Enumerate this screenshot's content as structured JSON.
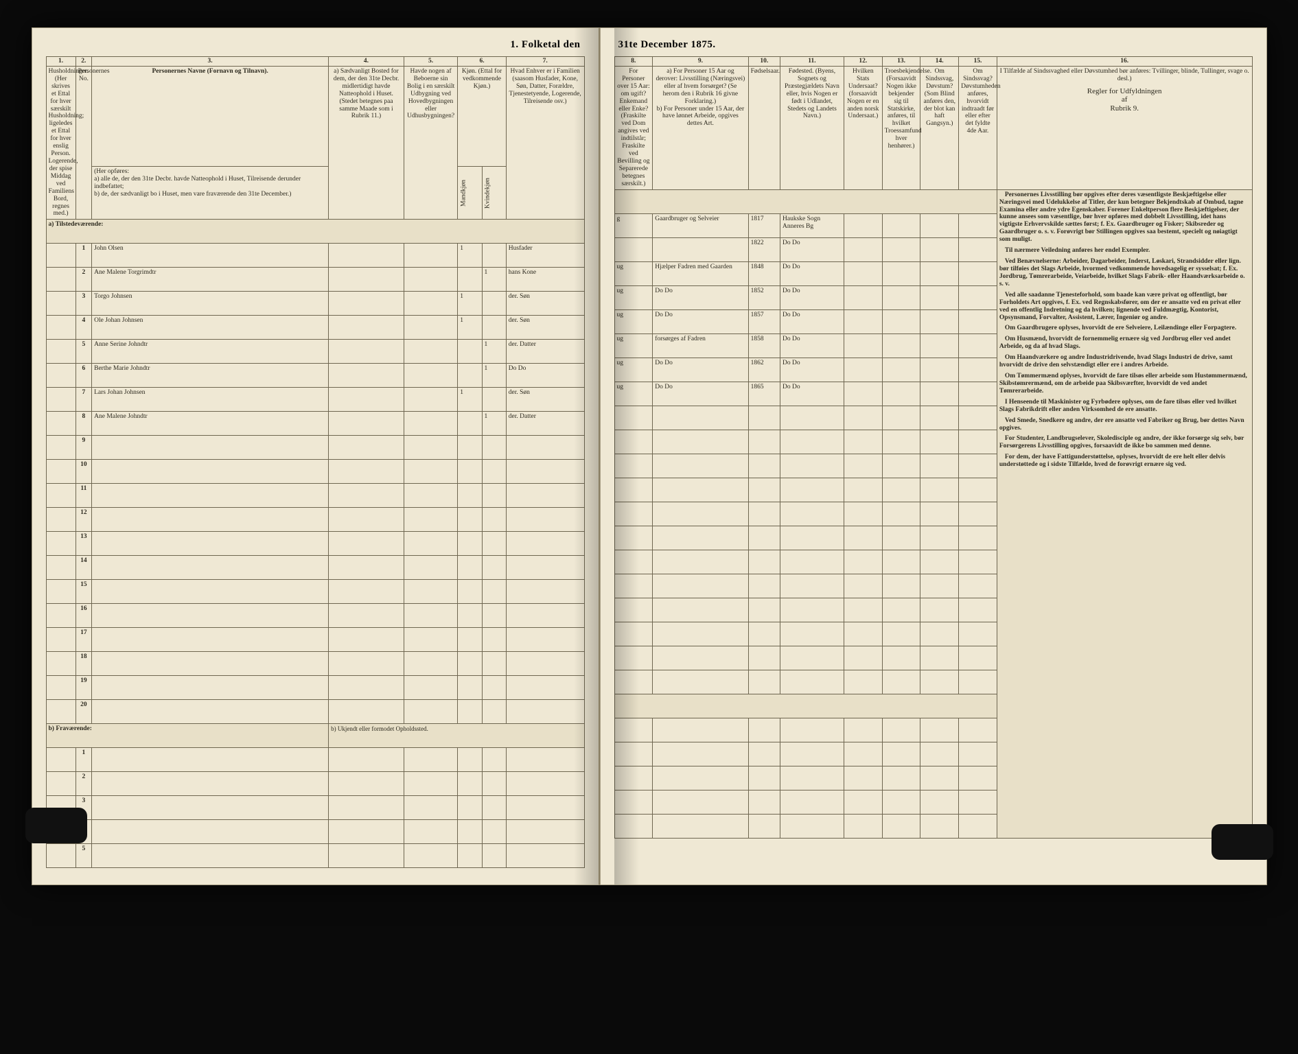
{
  "title_left": "1. Folketal den",
  "title_right": "31te December 1875.",
  "col_numbers_left": [
    "1.",
    "2.",
    "3.",
    "4.",
    "5.",
    "6.",
    "7."
  ],
  "col_numbers_right": [
    "8.",
    "9.",
    "10.",
    "11.",
    "12.",
    "13.",
    "14.",
    "15.",
    "16."
  ],
  "headers_left": {
    "c1": "Husholdninger. (Her skrives et Ettal for hver særskilt Husholdning; ligeledes et Ettal for hver enslig Person. Logerende, der spise Middag ved Familiens Bord, regnes med.)",
    "c2": "Personernes No.",
    "c3_top": "Personernes Navne (Fornavn og Tilnavn).",
    "c3_sub": "(Her opføres:\na) alle de, der den 31te Decbr. havde Natteophold i Huset, Tilreisende derunder indbefattet;\nb) de, der sædvanligt bo i Huset, men vare fraværende den 31te December.)",
    "c4": "a) Sædvanligt Bosted for dem, der den 31te Decbr. midlertidigt havde Natteophold i Huset. (Stedet betegnes paa samme Maade som i Rubrik 11.)",
    "c5": "Havde nogen af Beboerne sin Bolig i en særskilt Udbygning ved Hovedbygningen eller Udhusbygningen?",
    "c6_top": "Kjøn. (Ettal for vedkommende Kjøn.)",
    "c6_m": "Mandkjøn",
    "c6_k": "Kvindekjøn",
    "c7": "Hvad Enhver er i Familien (saasom Husfader, Kone, Søn, Datter, Forældre, Tjenestetyende, Logerende, Tilreisende osv.)"
  },
  "headers_right": {
    "c8": "For Personer over 15 Aar: om ugift? Enkemand eller Enke? (Fraskilte ved Dom angives ved indtilstår; Fraskilte ved Bevilling og Separerede betegnes særskilt.)",
    "c9": "a) For Personer 15 Aar og derover: Livsstilling (Næringsvei) eller af hvem forsørget? (Se herom den i Rubrik 16 givne Forklaring.)\nb) For Personer under 15 Aar, der have lønnet Arbeide, opgives dettes Art.",
    "c10": "Fødselsaar.",
    "c11": "Fødested. (Byens, Sognets og Præstegjældets Navn eller, hvis Nogen er født i Udlandet, Stedets og Landets Navn.)",
    "c12": "Hvilken Stats Undersaat? (forsaavidt Nogen er en anden norsk Undersaat.)",
    "c13": "Troesbekjendelse. (Forsaavidt Nogen ikke bekjender sig til Statskirke, anføres, til hvilket Troessamfund hver henhører.)",
    "c14": "Om Sindssvag, Døvstum? (Som Blind anføres den, der blot kan haft Gangsyn.)",
    "c15": "Om Sindssvag? Døvstumheden anføres, hvorvidt indtraadt før eller efter det fyldte 4de Aar.",
    "c16_head": "I Tilfælde af Sindssvaghed eller Døvstumhed bør anføres: Tvillinger, blinde, Tullinger, svage o. desl.)"
  },
  "rules_block_title": "Regler for Udfyldningen\naf\nRubrik 9.",
  "rules_paragraphs": [
    "Personernes Livsstilling bør opgives efter deres væsentligste Beskjæftigelse eller Næringsvei med Udelukkelse af Titler, der kun betegner Bekjendtskab af Ombud, tagne Examina eller andre ydre Egenskaber. Forener Enkeltperson flere Beskjæftigelser, der kunne ansees som væsentlige, bør hver opføres med dobbelt Livsstilling, idet hans vigtigste Erhvervskilde sættes først; f. Ex. Gaardbruger og Fisker; Skibsreder og Gaardbruger o. s. v. Forøvrigt bør Stillingen opgives saa bestemt, specielt og nøiagtigt som muligt.",
    "Til nærmere Veiledning anføres her endel Exempler.",
    "Ved Benævnelserne: Arbeider, Dagarbeider, Inderst, Løskari, Strandsidder eller lign. bør tilføies det Slags Arbeide, hvormed vedkommende hovedsagelig er sysselsat; f. Ex. Jordbrug, Tømrerarbeide, Veiarbeide, hvilket Slags Fabrik- eller Haandværksarbeide o. s. v.",
    "Ved alle saadanne Tjenesteforhold, som baade kan være privat og offentligt, bør Forholdets Art opgives, f. Ex. ved Regnskabsfører, om der er ansatte ved en privat eller ved en offentlig Indretning og da hvilken; lignende ved Fuldmægtig, Kontorist, Opsynsmand, Forvalter, Assistent, Lærer, Ingeniør og andre.",
    "Om Gaardbrugere oplyses, hvorvidt de ere Selveiere, Leilændinge eller Forpagtere.",
    "Om Husmænd, hvorvidt de fornemmelig ernære sig ved Jordbrug eller ved andet Arbeide, og da af hvad Slags.",
    "Om Haandværkere og andre Industridrivende, hvad Slags Industri de drive, samt hvorvidt de drive den selvstændigt eller ere i andres Arbeide.",
    "Om Tømmermænd oplyses, hvorvidt de fare tilsøs eller arbeide som Hustømmermænd, Skibstømrermænd, om de arbeide paa Skibsværfter, hvorvidt de ved andet Tømrerarbeide.",
    "I Henseende til Maskinister og Fyrbødere oplyses, om de fare tilsøs eller ved hvilket Slags Fabrikdrift eller anden Virksomhed de ere ansatte.",
    "Ved Smede, Snedkere og andre, der ere ansatte ved Fabriker og Brug, bør dettes Navn opgives.",
    "For Studenter, Landbrugselever, Skoledisciple og andre, der ikke forsørge sig selv, bør Forsørgerens Livsstilling opgives, forsaavidt de ikke bo sammen med denne.",
    "For dem, der have Fattigunderstøttelse, oplyses, hvorvidt de ere helt eller delvis understøttede og i sidste Tilfælde, hved de forøvrigt ernære sig ved."
  ],
  "section_a": "a)  Tilstedeværende:",
  "section_b": "b)  Fraværende:",
  "section_b_note": "b) Ukjendt eller formodet Opholdssted.",
  "rows_a": [
    {
      "n": "1",
      "name": "John Olsen",
      "c4": "",
      "c5": "",
      "m": "1",
      "k": "",
      "rel": "Husfader",
      "c8": "g",
      "occ": "Gaardbruger og Selveier",
      "yr": "1817",
      "born": "Haukske Sogn Anneres Bg",
      "s12": "",
      "s13": "",
      "s14": "",
      "s15": ""
    },
    {
      "n": "2",
      "name": "Ane Malene Torgrimdtr",
      "c4": "",
      "c5": "",
      "m": "",
      "k": "1",
      "rel": "hans Kone",
      "c8": "",
      "occ": "",
      "yr": "1822",
      "born": "Do   Do",
      "s12": "",
      "s13": "",
      "s14": "",
      "s15": ""
    },
    {
      "n": "3",
      "name": "Torgo Johnsen",
      "c4": "",
      "c5": "",
      "m": "1",
      "k": "",
      "rel": "der. Søn",
      "c8": "ug",
      "occ": "Hjælper Fadren med Gaarden",
      "yr": "1848",
      "born": "Do   Do",
      "s12": "",
      "s13": "",
      "s14": "",
      "s15": ""
    },
    {
      "n": "4",
      "name": "Ole Johan Johnsen",
      "c4": "",
      "c5": "",
      "m": "1",
      "k": "",
      "rel": "der. Søn",
      "c8": "ug",
      "occ": "Do     Do",
      "yr": "1852",
      "born": "Do   Do",
      "s12": "",
      "s13": "",
      "s14": "",
      "s15": ""
    },
    {
      "n": "5",
      "name": "Anne Serine Johndtr",
      "c4": "",
      "c5": "",
      "m": "",
      "k": "1",
      "rel": "der. Datter",
      "c8": "ug",
      "occ": "Do     Do",
      "yr": "1857",
      "born": "Do   Do",
      "s12": "",
      "s13": "",
      "s14": "",
      "s15": ""
    },
    {
      "n": "6",
      "name": "Berthe Marie Johndtr",
      "c4": "",
      "c5": "",
      "m": "",
      "k": "1",
      "rel": "Do   Do",
      "c8": "ug",
      "occ": "forsørges af Fadren",
      "yr": "1858",
      "born": "Do   Do",
      "s12": "",
      "s13": "",
      "s14": "",
      "s15": ""
    },
    {
      "n": "7",
      "name": "Lars Johan Johnsen",
      "c4": "",
      "c5": "",
      "m": "1",
      "k": "",
      "rel": "der. Søn",
      "c8": "ug",
      "occ": "Do     Do",
      "yr": "1862",
      "born": "Do   Do",
      "s12": "",
      "s13": "",
      "s14": "",
      "s15": ""
    },
    {
      "n": "8",
      "name": "Ane Malene Johndtr",
      "c4": "",
      "c5": "",
      "m": "",
      "k": "1",
      "rel": "der. Datter",
      "c8": "ug",
      "occ": "Do     Do",
      "yr": "1865",
      "born": "Do   Do",
      "s12": "",
      "s13": "",
      "s14": "",
      "s15": ""
    }
  ],
  "empty_a_rows": [
    "9",
    "10",
    "11",
    "12",
    "13",
    "14",
    "15",
    "16",
    "17",
    "18",
    "19",
    "20"
  ],
  "rows_b_count": 5,
  "colors": {
    "paper": "#efe8d4",
    "line": "#6e6650",
    "ink": "#2d2a1f",
    "shade": "#e8e0c8"
  }
}
